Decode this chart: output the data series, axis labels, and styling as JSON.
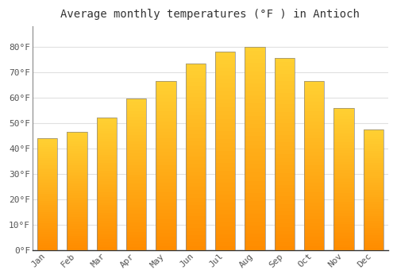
{
  "title": "Average monthly temperatures (°F ) in Antioch",
  "months": [
    "Jan",
    "Feb",
    "Mar",
    "Apr",
    "May",
    "Jun",
    "Jul",
    "Aug",
    "Sep",
    "Oct",
    "Nov",
    "Dec"
  ],
  "values": [
    44,
    46.5,
    52,
    59.5,
    66.5,
    73.5,
    78,
    80,
    75.5,
    66.5,
    56,
    47.5
  ],
  "bar_color": "#FFA500",
  "bar_color_light": "#FFD966",
  "bar_edge_color": "#888888",
  "ylim": [
    0,
    88
  ],
  "yticks": [
    0,
    10,
    20,
    30,
    40,
    50,
    60,
    70,
    80
  ],
  "ytick_labels": [
    "0°F",
    "10°F",
    "20°F",
    "30°F",
    "40°F",
    "50°F",
    "60°F",
    "70°F",
    "80°F"
  ],
  "background_color": "#FFFFFF",
  "plot_bg_color": "#FFFFFF",
  "grid_color": "#E0E0E0",
  "title_fontsize": 10,
  "tick_fontsize": 8,
  "font_family": "monospace"
}
